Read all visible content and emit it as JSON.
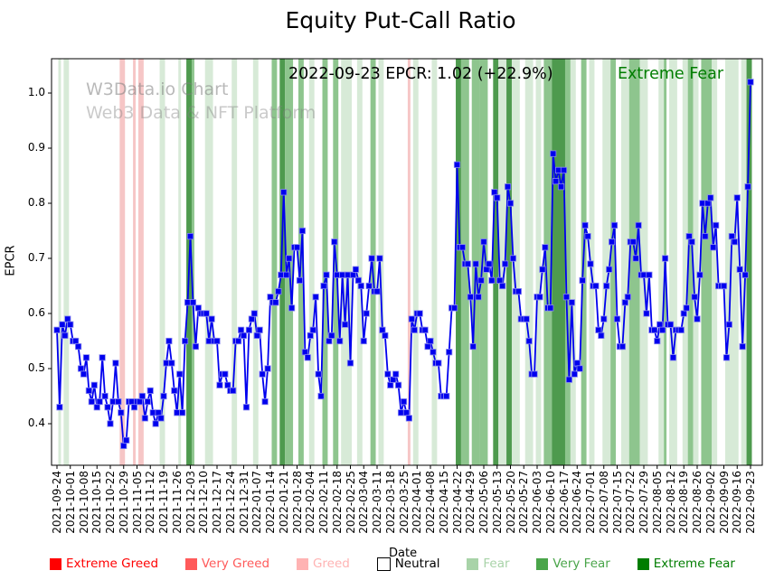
{
  "figure": {
    "title": "Equity Put-Call Ratio"
  },
  "watermark": {
    "line1": "W3Data.io Chart",
    "line2": "Web3 Data & NFT Platform"
  },
  "annotation": {
    "text": "2022-09-23 EPCR: 1.02 (+22.9%)",
    "sentiment": "Extreme Fear",
    "sentiment_color": "#007d00"
  },
  "axes": {
    "ylabel": "EPCR",
    "xlabel": "Date",
    "yticks": [
      "0.4",
      "0.5",
      "0.6",
      "0.7",
      "0.8",
      "0.9",
      "1.0"
    ]
  },
  "legend": {
    "items": [
      {
        "label": "Extreme Greed",
        "color": "#ff0000",
        "text_color": "#ff0000",
        "edge": "none"
      },
      {
        "label": "Very Greed",
        "color": "#ff5a5a",
        "text_color": "#ff5a5a",
        "edge": "none"
      },
      {
        "label": "Greed",
        "color": "#ffb3b3",
        "text_color": "#ffb3b3",
        "edge": "none"
      },
      {
        "label": "Neutral",
        "color": "#ffffff",
        "text_color": "#000000",
        "edge": "#000000"
      },
      {
        "label": "Fear",
        "color": "#a8d3a8",
        "text_color": "#a8d3a8",
        "edge": "none"
      },
      {
        "label": "Very Fear",
        "color": "#4aa54a",
        "text_color": "#4aa54a",
        "edge": "none"
      },
      {
        "label": "Extreme Fear",
        "color": "#007d00",
        "text_color": "#007d00",
        "edge": "none"
      }
    ]
  },
  "chart_data": {
    "type": "line",
    "title": "Equity Put-Call Ratio",
    "xlabel": "Date",
    "ylabel": "EPCR",
    "series_name": "EPCR",
    "x_start_date": "2021-09-24",
    "x_end_date": "2022-09-23",
    "points_per_week": 5,
    "ylim": [
      0.325,
      1.06
    ],
    "grid": false,
    "line_color": "#0000ee",
    "marker": "square",
    "last_point": {
      "date": "2022-09-23",
      "value": 1.02,
      "change_pct": 22.9,
      "sentiment": "Extreme Fear"
    },
    "week_tick_labels": [
      "2021-09-24",
      "2021-10-01",
      "2021-10-08",
      "2021-10-15",
      "2021-10-22",
      "2021-10-29",
      "2021-11-05",
      "2021-11-12",
      "2021-11-19",
      "2021-11-26",
      "2021-12-03",
      "2021-12-10",
      "2021-12-17",
      "2021-12-24",
      "2021-12-31",
      "2022-01-07",
      "2022-01-14",
      "2022-01-21",
      "2022-01-28",
      "2022-02-04",
      "2022-02-11",
      "2022-02-18",
      "2022-02-25",
      "2022-03-04",
      "2022-03-11",
      "2022-03-18",
      "2022-03-25",
      "2022-04-01",
      "2022-04-08",
      "2022-04-15",
      "2022-04-22",
      "2022-04-29",
      "2022-05-06",
      "2022-05-13",
      "2022-05-20",
      "2022-05-27",
      "2022-06-03",
      "2022-06-10",
      "2022-06-17",
      "2022-06-24",
      "2022-07-01",
      "2022-07-08",
      "2022-07-15",
      "2022-07-22",
      "2022-07-29",
      "2022-08-05",
      "2022-08-12",
      "2022-08-19",
      "2022-08-26",
      "2022-09-02",
      "2022-09-09",
      "2022-09-16",
      "2022-09-23"
    ],
    "values": [
      0.57,
      0.43,
      0.58,
      0.56,
      0.59,
      0.58,
      0.55,
      0.55,
      0.54,
      0.5,
      0.49,
      0.52,
      0.46,
      0.44,
      0.47,
      0.43,
      0.44,
      0.52,
      0.45,
      0.43,
      0.4,
      0.44,
      0.51,
      0.44,
      0.42,
      0.36,
      0.37,
      0.44,
      0.44,
      0.43,
      0.44,
      0.44,
      0.45,
      0.41,
      0.44,
      0.46,
      0.42,
      0.4,
      0.42,
      0.41,
      0.45,
      0.51,
      0.55,
      0.51,
      0.46,
      0.42,
      0.49,
      0.42,
      0.55,
      0.62,
      0.74,
      0.62,
      0.54,
      0.61,
      0.6,
      0.6,
      0.6,
      0.55,
      0.59,
      0.55,
      0.55,
      0.47,
      0.49,
      0.49,
      0.47,
      0.46,
      0.46,
      0.55,
      0.55,
      0.57,
      0.56,
      0.43,
      0.57,
      0.59,
      0.6,
      0.56,
      0.57,
      0.49,
      0.44,
      0.5,
      0.63,
      0.62,
      0.62,
      0.64,
      0.67,
      0.82,
      0.67,
      0.7,
      0.61,
      0.72,
      0.72,
      0.66,
      0.75,
      0.53,
      0.52,
      0.56,
      0.57,
      0.63,
      0.49,
      0.45,
      0.65,
      0.67,
      0.55,
      0.56,
      0.73,
      0.67,
      0.55,
      0.67,
      0.58,
      0.67,
      0.51,
      0.67,
      0.68,
      0.66,
      0.65,
      0.55,
      0.6,
      0.65,
      0.7,
      0.64,
      0.64,
      0.7,
      0.57,
      0.56,
      0.49,
      0.47,
      0.48,
      0.49,
      0.47,
      0.42,
      0.44,
      0.42,
      0.41,
      0.59,
      0.57,
      0.6,
      0.6,
      0.57,
      0.57,
      0.54,
      0.55,
      0.53,
      0.51,
      0.51,
      0.45,
      0.45,
      0.45,
      0.53,
      0.61,
      0.61,
      0.87,
      0.72,
      0.72,
      0.69,
      0.69,
      0.63,
      0.54,
      0.69,
      0.63,
      0.66,
      0.73,
      0.68,
      0.69,
      0.66,
      0.82,
      0.81,
      0.66,
      0.65,
      0.69,
      0.83,
      0.8,
      0.7,
      0.64,
      0.64,
      0.59,
      0.59,
      0.59,
      0.55,
      0.49,
      0.49,
      0.63,
      0.63,
      0.68,
      0.72,
      0.61,
      0.61,
      0.89,
      0.84,
      0.86,
      0.83,
      0.86,
      0.63,
      0.48,
      0.62,
      0.49,
      0.51,
      0.5,
      0.66,
      0.76,
      0.74,
      0.69,
      0.65,
      0.65,
      0.57,
      0.56,
      0.59,
      0.65,
      0.68,
      0.73,
      0.76,
      0.59,
      0.54,
      0.54,
      0.62,
      0.63,
      0.73,
      0.73,
      0.7,
      0.76,
      0.67,
      0.67,
      0.6,
      0.67,
      0.57,
      0.57,
      0.55,
      0.58,
      0.57,
      0.7,
      0.58,
      0.58,
      0.52,
      0.57,
      0.57,
      0.57,
      0.6,
      0.61,
      0.74,
      0.73,
      0.63,
      0.59,
      0.67,
      0.8,
      0.74,
      0.8,
      0.81,
      0.72,
      0.76,
      0.65,
      0.65,
      0.65,
      0.52,
      0.58,
      0.74,
      0.73,
      0.81,
      0.68,
      0.54,
      0.67,
      0.83,
      1.02
    ],
    "band_colors": {
      "greed": "#f6c6c6",
      "fear": "#d7ead7",
      "very_fear": "#8ec58e",
      "extreme_fear": "#4e9a4e"
    },
    "bands": [
      {
        "s": 1,
        "e": 1,
        "level": "fear"
      },
      {
        "s": 3,
        "e": 4,
        "level": "fear"
      },
      {
        "s": 24,
        "e": 25,
        "level": "greed"
      },
      {
        "s": 29,
        "e": 29,
        "level": "greed"
      },
      {
        "s": 31,
        "e": 32,
        "level": "greed"
      },
      {
        "s": 39,
        "e": 40,
        "level": "fear"
      },
      {
        "s": 46,
        "e": 46,
        "level": "fear"
      },
      {
        "s": 49,
        "e": 50,
        "level": "extreme_fear"
      },
      {
        "s": 51,
        "e": 51,
        "level": "very_fear"
      },
      {
        "s": 56,
        "e": 58,
        "level": "fear"
      },
      {
        "s": 66,
        "e": 67,
        "level": "fear"
      },
      {
        "s": 74,
        "e": 75,
        "level": "fear"
      },
      {
        "s": 81,
        "e": 82,
        "level": "very_fear"
      },
      {
        "s": 84,
        "e": 85,
        "level": "extreme_fear"
      },
      {
        "s": 86,
        "e": 88,
        "level": "very_fear"
      },
      {
        "s": 91,
        "e": 92,
        "level": "very_fear"
      },
      {
        "s": 95,
        "e": 96,
        "level": "fear"
      },
      {
        "s": 100,
        "e": 101,
        "level": "very_fear"
      },
      {
        "s": 104,
        "e": 105,
        "level": "very_fear"
      },
      {
        "s": 107,
        "e": 110,
        "level": "fear"
      },
      {
        "s": 113,
        "e": 114,
        "level": "fear"
      },
      {
        "s": 118,
        "e": 119,
        "level": "very_fear"
      },
      {
        "s": 121,
        "e": 122,
        "level": "fear"
      },
      {
        "s": 132,
        "e": 132,
        "level": "greed"
      },
      {
        "s": 134,
        "e": 135,
        "level": "fear"
      },
      {
        "s": 141,
        "e": 142,
        "level": "fear"
      },
      {
        "s": 150,
        "e": 151,
        "level": "extreme_fear"
      },
      {
        "s": 152,
        "e": 154,
        "level": "very_fear"
      },
      {
        "s": 156,
        "e": 158,
        "level": "very_fear"
      },
      {
        "s": 159,
        "e": 161,
        "level": "very_fear"
      },
      {
        "s": 164,
        "e": 165,
        "level": "extreme_fear"
      },
      {
        "s": 166,
        "e": 168,
        "level": "fear"
      },
      {
        "s": 169,
        "e": 170,
        "level": "extreme_fear"
      },
      {
        "s": 171,
        "e": 173,
        "level": "fear"
      },
      {
        "s": 176,
        "e": 178,
        "level": "fear"
      },
      {
        "s": 180,
        "e": 181,
        "level": "fear"
      },
      {
        "s": 183,
        "e": 185,
        "level": "very_fear"
      },
      {
        "s": 186,
        "e": 190,
        "level": "extreme_fear"
      },
      {
        "s": 191,
        "e": 192,
        "level": "very_fear"
      },
      {
        "s": 193,
        "e": 194,
        "level": "fear"
      },
      {
        "s": 197,
        "e": 198,
        "level": "very_fear"
      },
      {
        "s": 200,
        "e": 201,
        "level": "fear"
      },
      {
        "s": 205,
        "e": 207,
        "level": "fear"
      },
      {
        "s": 208,
        "e": 209,
        "level": "very_fear"
      },
      {
        "s": 212,
        "e": 214,
        "level": "fear"
      },
      {
        "s": 215,
        "e": 218,
        "level": "very_fear"
      },
      {
        "s": 219,
        "e": 221,
        "level": "fear"
      },
      {
        "s": 226,
        "e": 227,
        "level": "fear"
      },
      {
        "s": 228,
        "e": 228,
        "level": "very_fear"
      },
      {
        "s": 230,
        "e": 232,
        "level": "fear"
      },
      {
        "s": 235,
        "e": 236,
        "level": "fear"
      },
      {
        "s": 237,
        "e": 238,
        "level": "very_fear"
      },
      {
        "s": 239,
        "e": 240,
        "level": "fear"
      },
      {
        "s": 242,
        "e": 245,
        "level": "very_fear"
      },
      {
        "s": 246,
        "e": 247,
        "level": "fear"
      },
      {
        "s": 251,
        "e": 255,
        "level": "fear"
      },
      {
        "s": 257,
        "e": 258,
        "level": "fear"
      },
      {
        "s": 259,
        "e": 260,
        "level": "extreme_fear"
      }
    ]
  }
}
